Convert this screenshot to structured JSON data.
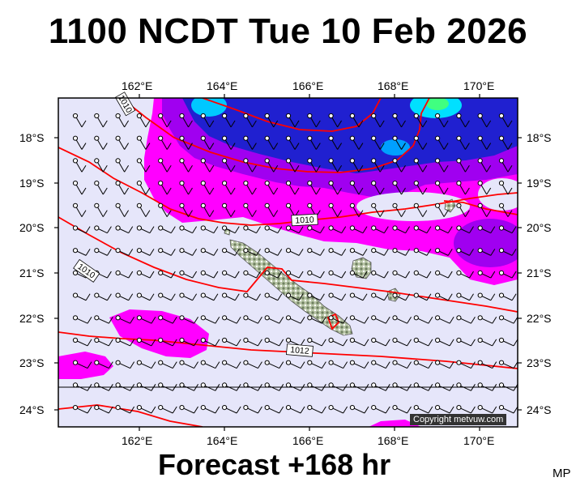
{
  "title": "1100 NCDT Tue 10 Feb 2026",
  "footer": "Forecast +168 hr",
  "initials": "MP",
  "copyright": "Copyright metvuw.com",
  "axes": {
    "lon_ticks": [
      "162°E",
      "164°E",
      "166°E",
      "168°E",
      "170°E"
    ],
    "lat_ticks": [
      "18°S",
      "19°S",
      "20°S",
      "21°S",
      "22°S",
      "23°S",
      "24°S"
    ]
  },
  "isobar_labels": [
    "1010",
    "1010",
    "1012",
    "1010"
  ],
  "colors": {
    "background": "#e6e6fa",
    "magenta": "#ff00ff",
    "violet": "#a000f0",
    "blue": "#2020d0",
    "cyan": "#00ffff",
    "isobar": "#ff0000",
    "land": "#9aaa8a"
  }
}
